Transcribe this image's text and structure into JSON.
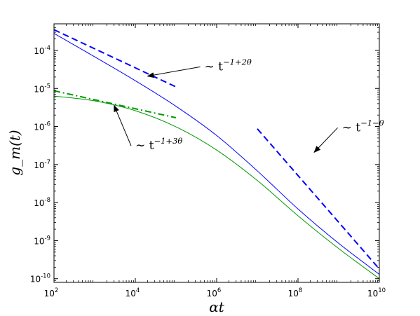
{
  "chart_data": {
    "type": "line",
    "title": "",
    "xlabel": "αt",
    "ylabel": "g_m(t)",
    "xscale": "log",
    "yscale": "log",
    "xlim": [
      100,
      10000000000
    ],
    "ylim": [
      8e-11,
      0.0005
    ],
    "grid": false,
    "legend": "none",
    "x_ticks": [
      {
        "value": 100,
        "base": "10",
        "exp": "2"
      },
      {
        "value": 10000,
        "base": "10",
        "exp": "4"
      },
      {
        "value": 1000000,
        "base": "10",
        "exp": "6"
      },
      {
        "value": 100000000,
        "base": "10",
        "exp": "8"
      },
      {
        "value": 10000000000,
        "base": "10",
        "exp": "10"
      }
    ],
    "y_ticks": [
      {
        "value": 1e-10,
        "base": "10",
        "exp": "-10"
      },
      {
        "value": 1e-09,
        "base": "10",
        "exp": "-9"
      },
      {
        "value": 1e-08,
        "base": "10",
        "exp": "-8"
      },
      {
        "value": 1e-07,
        "base": "10",
        "exp": "-7"
      },
      {
        "value": 1e-06,
        "base": "10",
        "exp": "-6"
      },
      {
        "value": 1e-05,
        "base": "10",
        "exp": "-5"
      },
      {
        "value": 0.0001,
        "base": "10",
        "exp": "-4"
      }
    ],
    "series": [
      {
        "color": "#0000ff",
        "style": "solid",
        "x": [
          100,
          1000,
          10000,
          100000,
          1000000,
          10000000,
          100000000,
          1000000000,
          10000000000
        ],
        "y": [
          0.00028,
          6.8e-05,
          1.6e-05,
          3.4e-06,
          5.8e-07,
          6.8e-08,
          6.8e-09,
          8.5e-10,
          1.3e-10
        ]
      },
      {
        "color": "#009900",
        "style": "solid",
        "x": [
          100,
          1000,
          10000,
          100000,
          1000000,
          10000000,
          100000000,
          1000000000,
          10000000000
        ],
        "y": [
          6.3e-06,
          4.7e-06,
          2.6e-06,
          9.8e-07,
          2.4e-07,
          3.8e-08,
          4.5e-09,
          6.2e-10,
          1e-10
        ]
      },
      {
        "color": "#0000ff",
        "style": "dashed",
        "x": [
          100,
          100000
        ],
        "y": [
          0.00035,
          1.1e-05
        ]
      },
      {
        "color": "#009900",
        "style": "dashdot",
        "x": [
          100,
          100000
        ],
        "y": [
          8.7e-06,
          1.7e-06
        ]
      },
      {
        "color": "#0000ff",
        "style": "dashed",
        "x": [
          10000000,
          10000000000
        ],
        "y": [
          8.7e-07,
          1.8e-10
        ]
      }
    ],
    "annotations": [
      {
        "prefix": "∼ t",
        "exponent": "−1+2θ",
        "text_at": [
          500000,
          3e-05
        ],
        "arrow_to": [
          20000,
          2.1e-05
        ]
      },
      {
        "prefix": "∼ t",
        "exponent": "−1+3θ",
        "text_at": [
          10000,
          2.5e-07
        ],
        "arrow_to": [
          3000,
          3.6e-06
        ]
      },
      {
        "prefix": "∼ t",
        "exponent": "−1−θ",
        "text_at": [
          1200000000,
          7.5e-07
        ],
        "arrow_to": [
          250000000,
          2.1e-07
        ]
      }
    ]
  }
}
